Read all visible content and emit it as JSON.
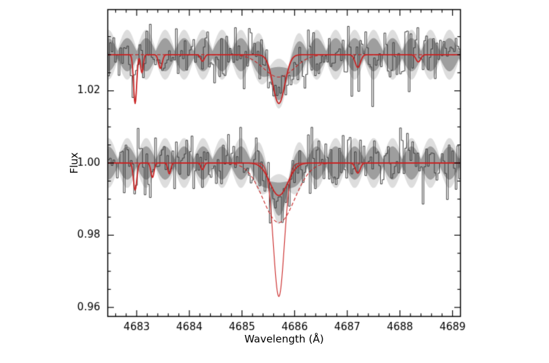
{
  "figure": {
    "background": "#ffffff",
    "axis_color": "#000000",
    "data_color": "#3c3c3c",
    "band_color": "#8f8f8f",
    "model_color": "#c92222"
  },
  "chart_data": {
    "type": "line",
    "title": "",
    "xlabel": "Wavelength (Å)",
    "ylabel": "Flux",
    "x_range": [
      4682.45,
      4689.15
    ],
    "y_range": [
      0.9575,
      1.0425
    ],
    "x_ticks": [
      4683,
      4684,
      4685,
      4686,
      4687,
      4688,
      4689
    ],
    "x_tick_labels": [
      "4683",
      "4684",
      "4685",
      "4686",
      "4687",
      "4688",
      "4689"
    ],
    "x_minor_step": 0.2,
    "y_ticks": [
      0.96,
      0.98,
      1.0,
      1.02
    ],
    "y_tick_labels": [
      "0.96",
      "0.98",
      "1.00",
      "1.02"
    ],
    "y_minor_step": 0.005,
    "grid": false,
    "legend": "none",
    "spectral_line_center": 4685.7,
    "spectra": [
      {
        "name": "upper-spectrum-offset",
        "continuum": 1.03,
        "noise_sigma": 0.0042,
        "seed": 11,
        "bin_width": 0.033,
        "data_absorption": [
          {
            "center": 4685.7,
            "depth": 0.012,
            "sigma": 0.16
          },
          {
            "center": 4682.97,
            "depth": 0.01,
            "sigma": 0.035
          },
          {
            "center": 4683.45,
            "depth": 0.004,
            "sigma": 0.04
          }
        ],
        "band": {
          "half_width_max": 0.0046,
          "half_width_min": 0.001,
          "period": 0.36,
          "phase_center": 4685.7,
          "dip": {
            "center": 4685.7,
            "depth": 0.008,
            "sigma": 0.18
          }
        },
        "model_curves": [
          {
            "label": "continuum-fit",
            "dash": [],
            "width": 1.8,
            "components": [
              {
                "center": 4682.97,
                "depth": 0.0135,
                "sigma": 0.03
              },
              {
                "center": 4683.1,
                "depth": 0.005,
                "sigma": 0.025
              },
              {
                "center": 4683.45,
                "depth": 0.0038,
                "sigma": 0.035
              },
              {
                "center": 4684.25,
                "depth": 0.0018,
                "sigma": 0.035
              },
              {
                "center": 4685.7,
                "depth": 0.0135,
                "sigma": 0.115
              },
              {
                "center": 4687.2,
                "depth": 0.0035,
                "sigma": 0.05
              },
              {
                "center": 4688.35,
                "depth": 0.002,
                "sigma": 0.045
              }
            ]
          },
          {
            "label": "broad-component",
            "dash": [
              5,
              3
            ],
            "width": 1.1,
            "components": [
              {
                "center": 4685.7,
                "depth": 0.0062,
                "sigma": 0.29
              }
            ]
          }
        ]
      },
      {
        "name": "lower-spectrum",
        "continuum": 1.0,
        "noise_sigma": 0.0042,
        "seed": 97,
        "bin_width": 0.033,
        "data_absorption": [
          {
            "center": 4685.7,
            "depth": 0.0125,
            "sigma": 0.16
          },
          {
            "center": 4682.97,
            "depth": 0.007,
            "sigma": 0.035
          },
          {
            "center": 4683.3,
            "depth": 0.004,
            "sigma": 0.03
          }
        ],
        "band": {
          "half_width_max": 0.0046,
          "half_width_min": 0.001,
          "period": 0.36,
          "phase_center": 4685.7,
          "dip": {
            "center": 4685.7,
            "depth": 0.01,
            "sigma": 0.18
          }
        },
        "model_curves": [
          {
            "label": "continuum-fit",
            "dash": [],
            "width": 1.8,
            "components": [
              {
                "center": 4682.97,
                "depth": 0.0075,
                "sigma": 0.032
              },
              {
                "center": 4683.3,
                "depth": 0.004,
                "sigma": 0.03
              },
              {
                "center": 4683.62,
                "depth": 0.003,
                "sigma": 0.028
              },
              {
                "center": 4684.25,
                "depth": 0.0018,
                "sigma": 0.03
              },
              {
                "center": 4685.7,
                "depth": 0.009,
                "sigma": 0.17
              },
              {
                "center": 4687.2,
                "depth": 0.0028,
                "sigma": 0.045
              }
            ]
          },
          {
            "label": "broad-component",
            "dash": [
              5,
              3
            ],
            "width": 1.1,
            "components": [
              {
                "center": 4685.7,
                "depth": 0.0165,
                "sigma": 0.3
              }
            ]
          },
          {
            "label": "deep-narrow-component",
            "dash": [],
            "width": 1.1,
            "components": [
              {
                "center": 4685.7,
                "depth": 0.037,
                "sigma": 0.105
              }
            ]
          }
        ]
      }
    ]
  }
}
